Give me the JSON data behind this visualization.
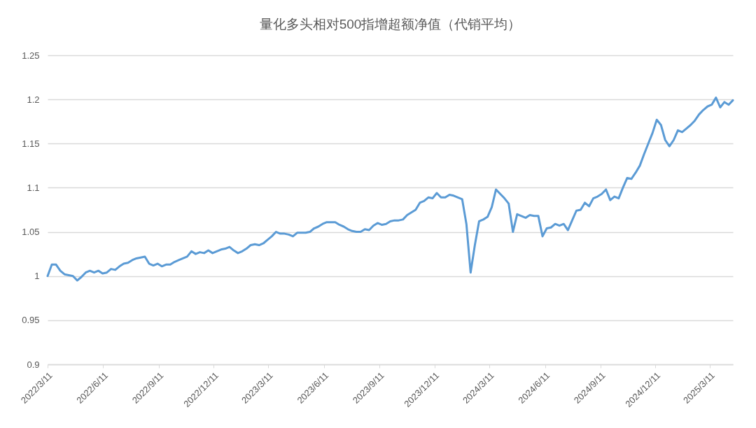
{
  "chart_data": {
    "type": "line",
    "title": "量化多头相对500指增超额净值（代销平均）",
    "x": [
      "2022-03-11",
      "2022-03-18",
      "2022-03-25",
      "2022-04-01",
      "2022-04-08",
      "2022-04-15",
      "2022-04-22",
      "2022-04-29",
      "2022-05-06",
      "2022-05-13",
      "2022-05-20",
      "2022-05-27",
      "2022-06-03",
      "2022-06-10",
      "2022-06-17",
      "2022-06-24",
      "2022-07-01",
      "2022-07-08",
      "2022-07-15",
      "2022-07-22",
      "2022-07-29",
      "2022-08-05",
      "2022-08-12",
      "2022-08-19",
      "2022-08-26",
      "2022-09-02",
      "2022-09-09",
      "2022-09-16",
      "2022-09-23",
      "2022-09-30",
      "2022-10-07",
      "2022-10-14",
      "2022-10-21",
      "2022-10-28",
      "2022-11-04",
      "2022-11-11",
      "2022-11-18",
      "2022-11-25",
      "2022-12-02",
      "2022-12-09",
      "2022-12-16",
      "2022-12-23",
      "2022-12-30",
      "2023-01-06",
      "2023-01-13",
      "2023-01-20",
      "2023-01-27",
      "2023-02-03",
      "2023-02-10",
      "2023-02-17",
      "2023-02-24",
      "2023-03-03",
      "2023-03-10",
      "2023-03-17",
      "2023-03-24",
      "2023-03-31",
      "2023-04-07",
      "2023-04-14",
      "2023-04-21",
      "2023-04-28",
      "2023-05-05",
      "2023-05-12",
      "2023-05-19",
      "2023-05-26",
      "2023-06-02",
      "2023-06-09",
      "2023-06-16",
      "2023-06-23",
      "2023-06-30",
      "2023-07-07",
      "2023-07-14",
      "2023-07-21",
      "2023-07-28",
      "2023-08-04",
      "2023-08-11",
      "2023-08-18",
      "2023-08-25",
      "2023-09-01",
      "2023-09-08",
      "2023-09-15",
      "2023-09-22",
      "2023-09-29",
      "2023-10-06",
      "2023-10-13",
      "2023-10-20",
      "2023-10-27",
      "2023-11-03",
      "2023-11-10",
      "2023-11-17",
      "2023-11-24",
      "2023-12-01",
      "2023-12-08",
      "2023-12-15",
      "2023-12-22",
      "2023-12-29",
      "2024-01-05",
      "2024-01-12",
      "2024-01-19",
      "2024-01-26",
      "2024-02-02",
      "2024-02-09",
      "2024-02-16",
      "2024-02-23",
      "2024-03-01",
      "2024-03-08",
      "2024-03-15",
      "2024-03-22",
      "2024-03-29",
      "2024-04-05",
      "2024-04-12",
      "2024-04-19",
      "2024-04-26",
      "2024-05-03",
      "2024-05-10",
      "2024-05-17",
      "2024-05-24",
      "2024-05-31",
      "2024-06-07",
      "2024-06-14",
      "2024-06-21",
      "2024-06-28",
      "2024-07-05",
      "2024-07-12",
      "2024-07-19",
      "2024-07-26",
      "2024-08-02",
      "2024-08-09",
      "2024-08-16",
      "2024-08-23",
      "2024-08-30",
      "2024-09-06",
      "2024-09-13",
      "2024-09-20",
      "2024-09-27",
      "2024-10-04",
      "2024-10-11",
      "2024-10-18",
      "2024-10-25",
      "2024-11-01",
      "2024-11-08",
      "2024-11-15",
      "2024-11-22",
      "2024-11-29",
      "2024-12-06",
      "2024-12-13",
      "2024-12-20",
      "2024-12-27",
      "2025-01-03",
      "2025-01-10",
      "2025-01-17",
      "2025-01-24",
      "2025-01-31",
      "2025-02-07",
      "2025-02-14",
      "2025-02-21",
      "2025-02-28",
      "2025-03-07",
      "2025-03-14",
      "2025-03-21",
      "2025-03-28",
      "2025-04-04",
      "2025-04-11",
      "2025-04-18"
    ],
    "series": [
      {
        "color": "#5b9bd5",
        "values": [
          1.0,
          1.013,
          1.013,
          1.006,
          1.002,
          1.001,
          1.0,
          0.995,
          0.999,
          1.004,
          1.006,
          1.004,
          1.006,
          1.003,
          1.004,
          1.008,
          1.007,
          1.011,
          1.014,
          1.015,
          1.018,
          1.02,
          1.021,
          1.022,
          1.014,
          1.012,
          1.014,
          1.011,
          1.013,
          1.013,
          1.016,
          1.018,
          1.02,
          1.022,
          1.028,
          1.025,
          1.027,
          1.026,
          1.029,
          1.026,
          1.028,
          1.03,
          1.031,
          1.033,
          1.029,
          1.026,
          1.028,
          1.031,
          1.035,
          1.036,
          1.035,
          1.037,
          1.041,
          1.045,
          1.05,
          1.048,
          1.048,
          1.047,
          1.045,
          1.049,
          1.049,
          1.049,
          1.05,
          1.054,
          1.056,
          1.059,
          1.061,
          1.061,
          1.061,
          1.058,
          1.056,
          1.053,
          1.051,
          1.05,
          1.05,
          1.053,
          1.052,
          1.057,
          1.06,
          1.058,
          1.059,
          1.062,
          1.063,
          1.063,
          1.064,
          1.069,
          1.072,
          1.075,
          1.083,
          1.085,
          1.089,
          1.088,
          1.094,
          1.089,
          1.089,
          1.092,
          1.091,
          1.089,
          1.087,
          1.059,
          1.004,
          1.035,
          1.062,
          1.064,
          1.067,
          1.078,
          1.098,
          1.093,
          1.088,
          1.082,
          1.05,
          1.07,
          1.068,
          1.066,
          1.069,
          1.068,
          1.068,
          1.045,
          1.054,
          1.055,
          1.059,
          1.057,
          1.059,
          1.052,
          1.063,
          1.074,
          1.075,
          1.083,
          1.079,
          1.088,
          1.09,
          1.093,
          1.098,
          1.086,
          1.09,
          1.088,
          1.1,
          1.111,
          1.11,
          1.117,
          1.125,
          1.138,
          1.15,
          1.162,
          1.177,
          1.171,
          1.154,
          1.147,
          1.154,
          1.165,
          1.163,
          1.167,
          1.171,
          1.176,
          1.183,
          1.188,
          1.192,
          1.194,
          1.202,
          1.191,
          1.197,
          1.194,
          1.199
        ]
      }
    ],
    "xlim": [
      "2022-03-11",
      "2025-04-18"
    ],
    "xticks": [
      {
        "value": "2022-03-11",
        "label": "2022/3/11"
      },
      {
        "value": "2022-06-11",
        "label": "2022/6/11"
      },
      {
        "value": "2022-09-11",
        "label": "2022/9/11"
      },
      {
        "value": "2022-12-11",
        "label": "2022/12/11"
      },
      {
        "value": "2023-03-11",
        "label": "2023/3/11"
      },
      {
        "value": "2023-06-11",
        "label": "2023/6/11"
      },
      {
        "value": "2023-09-11",
        "label": "2023/9/11"
      },
      {
        "value": "2023-12-11",
        "label": "2023/12/11"
      },
      {
        "value": "2024-03-11",
        "label": "2024/3/11"
      },
      {
        "value": "2024-06-11",
        "label": "2024/6/11"
      },
      {
        "value": "2024-09-11",
        "label": "2024/9/11"
      },
      {
        "value": "2024-12-11",
        "label": "2024/12/11"
      },
      {
        "value": "2025-03-11",
        "label": "2025/3/11"
      }
    ],
    "ylim": [
      0.9,
      1.25
    ],
    "yticks": [
      0.9,
      0.95,
      1,
      1.05,
      1.1,
      1.15,
      1.2,
      1.25
    ],
    "grid": "y",
    "legend": false,
    "marker": "none",
    "line_style": "solid"
  }
}
